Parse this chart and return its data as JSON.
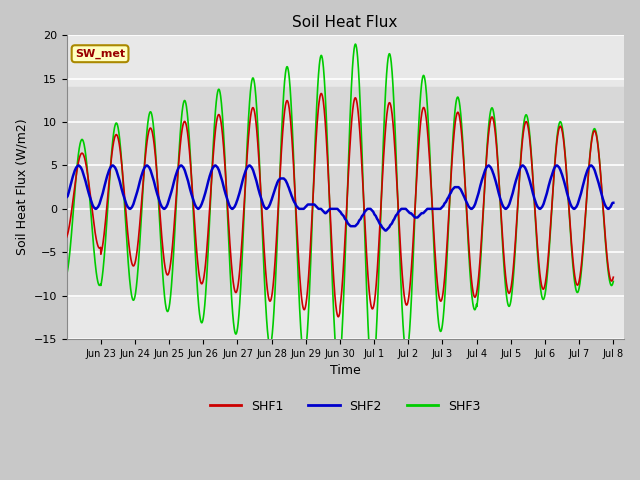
{
  "title": "Soil Heat Flux",
  "xlabel": "Time",
  "ylabel": "Soil Heat Flux (W/m2)",
  "ylim": [
    -15,
    20
  ],
  "yticks": [
    -15,
    -10,
    -5,
    0,
    5,
    10,
    15,
    20
  ],
  "shaded_band_lo": -10,
  "shaded_band_hi": 14,
  "line_colors": {
    "SHF1": "#cc0000",
    "SHF2": "#0000cc",
    "SHF3": "#00cc00"
  },
  "line_widths": {
    "SHF1": 1.2,
    "SHF2": 1.8,
    "SHF3": 1.2
  },
  "annotation_text": "SW_met",
  "annotation_color": "#990000",
  "annotation_bg": "#ffffc0",
  "annotation_border": "#aa8800",
  "fig_facecolor": "#c8c8c8",
  "plot_bg_color": "#e8e8e8",
  "shaded_color": "#d8d8d8",
  "tick_labels": [
    "Jun 23",
    "Jun 24",
    "Jun 25",
    "Jun 26",
    "Jun 27",
    "Jun 28",
    "Jun 29",
    "Jun 30",
    "Jul 1",
    "Jul 2",
    "Jul 3",
    "Jul 4",
    "Jul 5",
    "Jul 6",
    "Jul 7",
    "Jul 8"
  ],
  "figsize": [
    6.4,
    4.8
  ],
  "dpi": 100
}
